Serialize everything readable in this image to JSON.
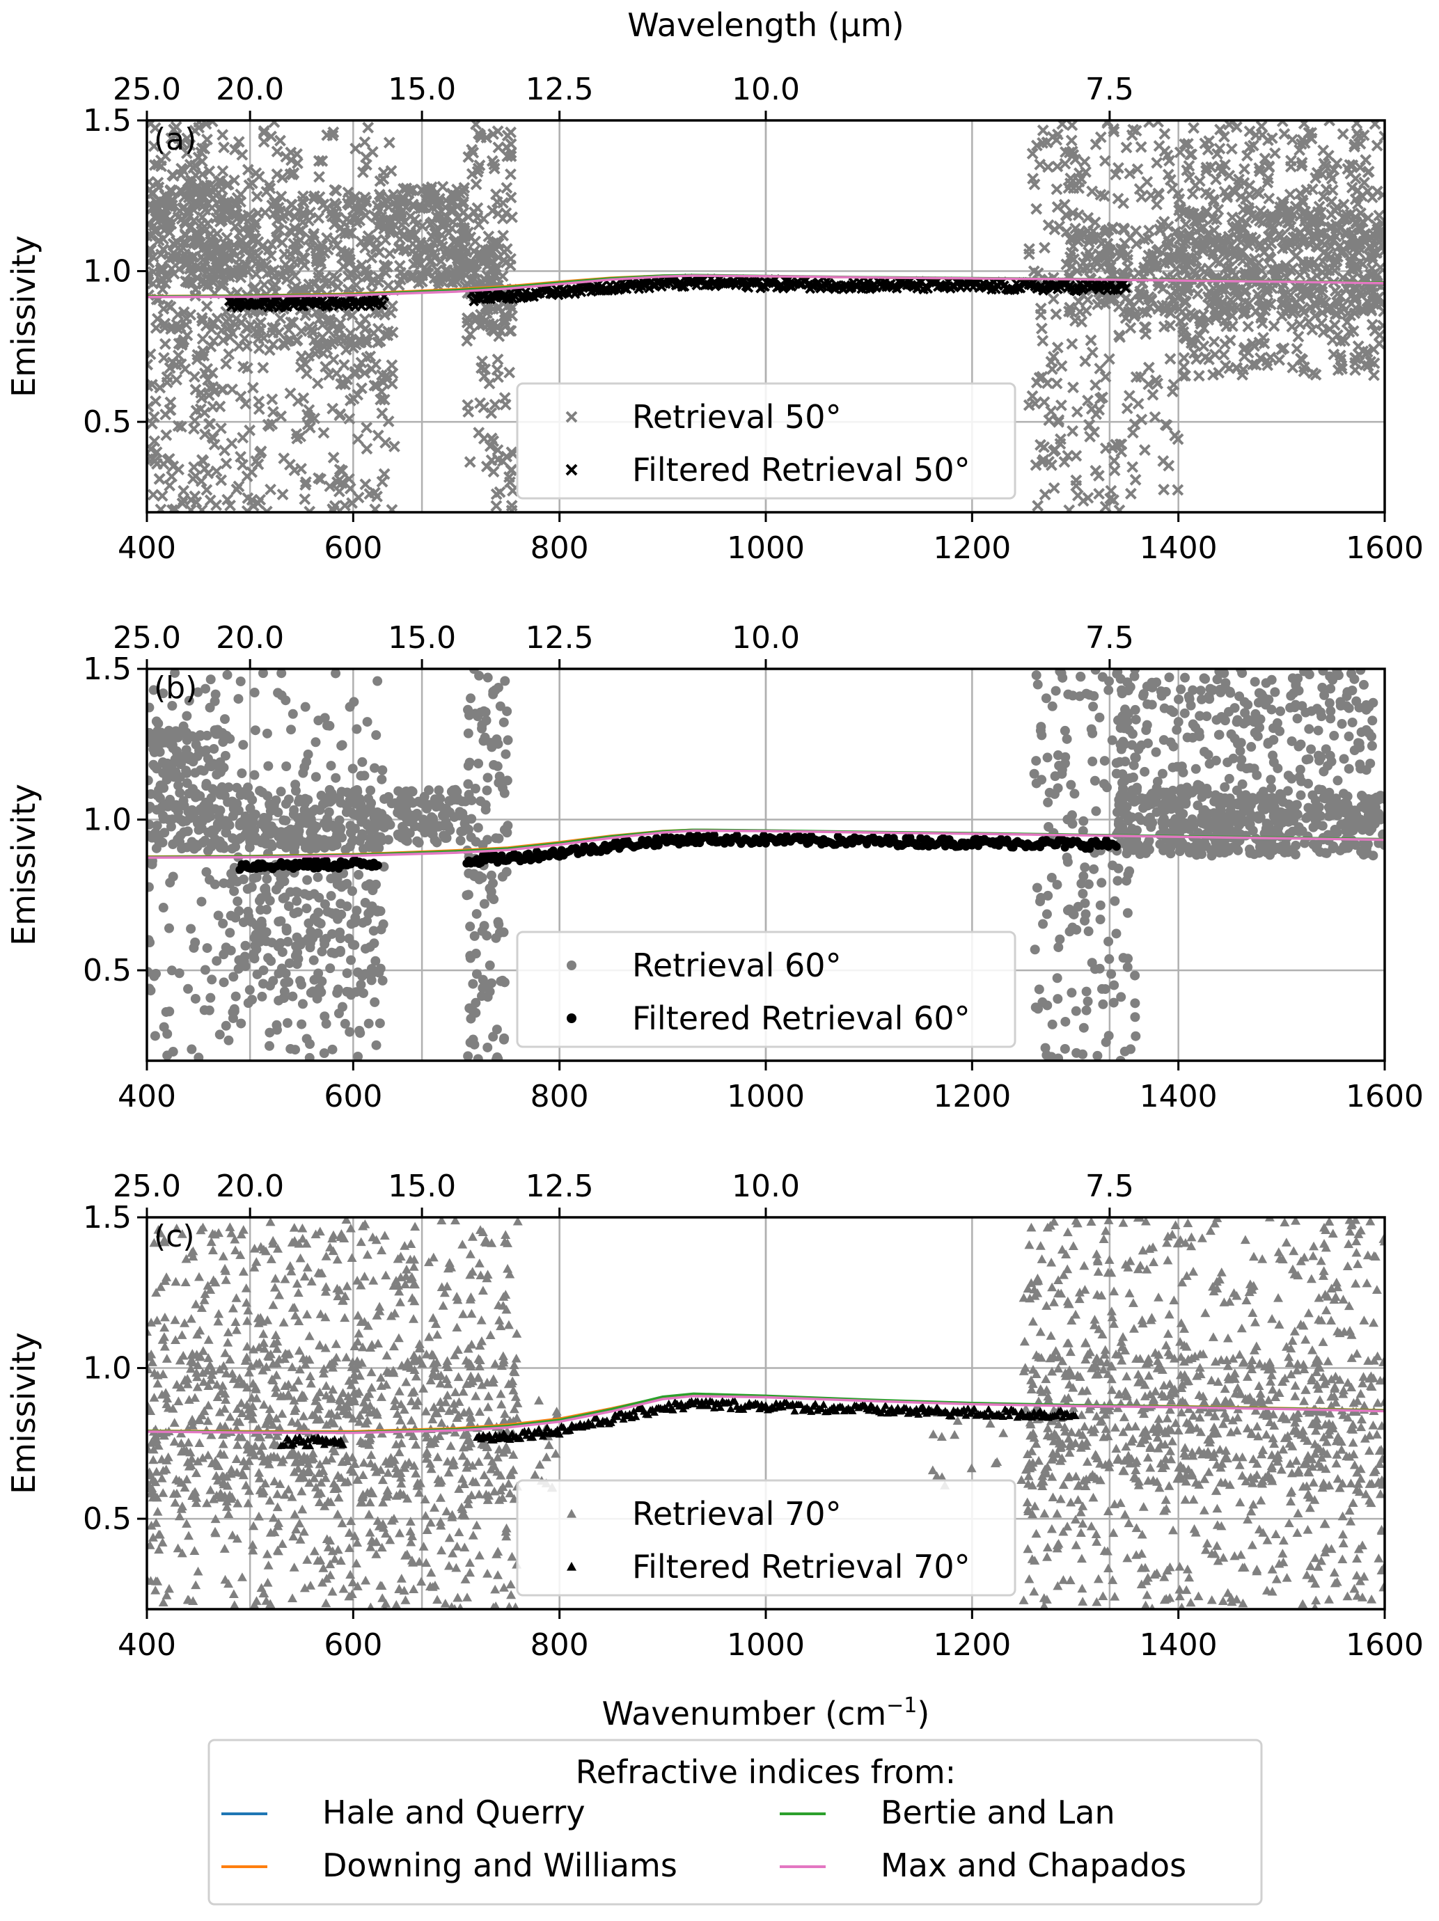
{
  "chart_data": {
    "type": "scatter",
    "top_axis_label": "Wavelength (μm)",
    "top_axis_ticks": [
      "25.0",
      "20.0",
      "15.0",
      "12.5",
      "10.0",
      "7.5"
    ],
    "top_axis_tick_wavelengths": [
      25.0,
      20.0,
      15.0,
      12.5,
      10.0,
      7.5
    ],
    "xlabel": "Wavenumber (cm⁻¹)",
    "xlabel_base": "Wavenumber (cm",
    "xlabel_sup": "−1",
    "xlabel_close": ")",
    "ylabel": "Emissivity",
    "xlim": [
      400,
      1600
    ],
    "ylim": [
      0.2,
      1.5
    ],
    "x_ticks": [
      "400",
      "600",
      "800",
      "1000",
      "1200",
      "1400",
      "1600"
    ],
    "y_ticks": [
      "0.5",
      "1.0",
      "1.5"
    ],
    "grid": true,
    "colors": {
      "retrieval": "#808080",
      "filtered": "#000000",
      "Hale and Querry": "#1f77b4",
      "Downing and Williams": "#ff7f0e",
      "Bertie and Lan": "#2ca02c",
      "Max and Chapados": "#e377c2"
    },
    "model_legend": {
      "title": "Refractive indices from:",
      "entries": [
        "Hale and Querry",
        "Downing and Williams",
        "Bertie and Lan",
        "Max and Chapados"
      ],
      "placement": "bottom-center"
    },
    "curve_x": [
      400,
      500,
      600,
      700,
      750,
      800,
      850,
      900,
      930,
      1000,
      1100,
      1200,
      1300,
      1400,
      1500,
      1600
    ],
    "panels": [
      {
        "label": "(a)",
        "marker": "x",
        "legend": [
          "Retrieval 50°",
          "Filtered Retrieval 50°"
        ],
        "legend_placement": "lower-center",
        "curves": {
          "Hale and Querry": [
            0.915,
            0.917,
            0.922,
            0.935,
            0.945,
            0.96,
            0.975,
            0.984,
            0.986,
            0.983,
            0.979,
            0.976,
            0.973,
            0.97,
            0.966,
            0.962
          ],
          "Downing and Williams": [
            0.917,
            0.919,
            0.925,
            0.94,
            0.95,
            0.965,
            0.978,
            0.985,
            0.986,
            0.983,
            0.979,
            0.976,
            0.973,
            0.97,
            0.966,
            0.962
          ],
          "Bertie and Lan": [
            0.916,
            0.918,
            0.923,
            0.937,
            0.947,
            0.962,
            0.976,
            0.985,
            0.987,
            0.984,
            0.98,
            0.977,
            0.974,
            0.97,
            0.966,
            0.962
          ],
          "Max and Chapados": [
            0.914,
            0.915,
            0.92,
            0.932,
            0.942,
            0.957,
            0.972,
            0.982,
            0.985,
            0.983,
            0.979,
            0.976,
            0.973,
            0.969,
            0.965,
            0.96
          ]
        },
        "retrieval_clusters": [
          {
            "x": [
              400,
              480
            ],
            "y": [
              0.2,
              1.5
            ],
            "n": 260
          },
          {
            "x": [
              400,
              480
            ],
            "y": [
              0.95,
              1.3
            ],
            "n": 200
          },
          {
            "x": [
              480,
              640
            ],
            "y": [
              0.2,
              1.5
            ],
            "n": 320
          },
          {
            "x": [
              480,
              640
            ],
            "y": [
              0.75,
              1.25
            ],
            "n": 300
          },
          {
            "x": [
              640,
              710
            ],
            "y": [
              0.95,
              1.28
            ],
            "n": 200
          },
          {
            "x": [
              710,
              755
            ],
            "y": [
              0.2,
              1.5
            ],
            "n": 120
          },
          {
            "x": [
              710,
              755
            ],
            "y": [
              0.8,
              1.1
            ],
            "n": 90
          },
          {
            "x": [
              1255,
              1400
            ],
            "y": [
              0.2,
              1.5
            ],
            "n": 260
          },
          {
            "x": [
              1290,
              1400
            ],
            "y": [
              0.85,
              1.15
            ],
            "n": 160
          },
          {
            "x": [
              1400,
              1600
            ],
            "y": [
              0.65,
              1.5
            ],
            "n": 450
          },
          {
            "x": [
              1400,
              1600
            ],
            "y": [
              0.85,
              1.2
            ],
            "n": 350
          }
        ],
        "filtered_ranges": [
          [
            480,
            630
          ],
          [
            715,
            1350
          ]
        ],
        "filtered_offset": -0.025
      },
      {
        "label": "(b)",
        "marker": "o",
        "legend": [
          "Retrieval 60°",
          "Filtered Retrieval 60°"
        ],
        "legend_placement": "lower-center",
        "curves": {
          "Hale and Querry": [
            0.875,
            0.877,
            0.882,
            0.893,
            0.902,
            0.92,
            0.942,
            0.96,
            0.965,
            0.963,
            0.958,
            0.954,
            0.949,
            0.944,
            0.939,
            0.935
          ],
          "Downing and Williams": [
            0.877,
            0.879,
            0.885,
            0.898,
            0.907,
            0.925,
            0.946,
            0.962,
            0.966,
            0.963,
            0.958,
            0.954,
            0.949,
            0.944,
            0.939,
            0.935
          ],
          "Bertie and Lan": [
            0.876,
            0.878,
            0.883,
            0.895,
            0.904,
            0.922,
            0.944,
            0.961,
            0.966,
            0.964,
            0.959,
            0.955,
            0.95,
            0.945,
            0.94,
            0.935
          ],
          "Max and Chapados": [
            0.874,
            0.875,
            0.88,
            0.89,
            0.899,
            0.917,
            0.939,
            0.957,
            0.963,
            0.962,
            0.957,
            0.953,
            0.948,
            0.943,
            0.938,
            0.933
          ]
        },
        "retrieval_clusters": [
          {
            "x": [
              400,
              480
            ],
            "y": [
              0.2,
              1.5
            ],
            "n": 90
          },
          {
            "x": [
              400,
              480
            ],
            "y": [
              0.9,
              1.3
            ],
            "n": 200
          },
          {
            "x": [
              480,
              630
            ],
            "y": [
              0.2,
              1.5
            ],
            "n": 200
          },
          {
            "x": [
              480,
              630
            ],
            "y": [
              0.9,
              1.1
            ],
            "n": 200
          },
          {
            "x": [
              480,
              630
            ],
            "y": [
              0.4,
              0.85
            ],
            "n": 150
          },
          {
            "x": [
              630,
              710
            ],
            "y": [
              0.92,
              1.1
            ],
            "n": 120
          },
          {
            "x": [
              710,
              750
            ],
            "y": [
              0.2,
              1.5
            ],
            "n": 130
          },
          {
            "x": [
              1260,
              1360
            ],
            "y": [
              0.2,
              1.5
            ],
            "n": 180
          },
          {
            "x": [
              1340,
              1590
            ],
            "y": [
              0.88,
              1.5
            ],
            "n": 420
          },
          {
            "x": [
              1340,
              1600
            ],
            "y": [
              0.88,
              1.1
            ],
            "n": 350
          }
        ],
        "filtered_ranges": [
          [
            490,
            625
          ],
          [
            710,
            1340
          ]
        ],
        "filtered_offset": -0.03
      },
      {
        "label": "(c)",
        "marker": "^",
        "legend": [
          "Retrieval 70°",
          "Filtered Retrieval 70°"
        ],
        "legend_placement": "lower-center",
        "curves": {
          "Hale and Querry": [
            0.79,
            0.787,
            0.786,
            0.795,
            0.805,
            0.825,
            0.86,
            0.9,
            0.91,
            0.905,
            0.893,
            0.882,
            0.876,
            0.872,
            0.866,
            0.86
          ],
          "Downing and Williams": [
            0.792,
            0.79,
            0.79,
            0.8,
            0.812,
            0.832,
            0.866,
            0.903,
            0.912,
            0.906,
            0.894,
            0.883,
            0.877,
            0.873,
            0.867,
            0.86
          ],
          "Bertie and Lan": [
            0.791,
            0.788,
            0.787,
            0.797,
            0.808,
            0.828,
            0.863,
            0.905,
            0.915,
            0.908,
            0.895,
            0.884,
            0.877,
            0.872,
            0.866,
            0.859
          ],
          "Max and Chapados": [
            0.789,
            0.786,
            0.785,
            0.793,
            0.803,
            0.822,
            0.856,
            0.897,
            0.907,
            0.903,
            0.891,
            0.88,
            0.874,
            0.87,
            0.864,
            0.857
          ]
        },
        "retrieval_clusters": [
          {
            "x": [
              400,
              760
            ],
            "y": [
              0.2,
              1.5
            ],
            "n": 750
          },
          {
            "x": [
              400,
              760
            ],
            "y": [
              0.55,
              1.05
            ],
            "n": 500
          },
          {
            "x": [
              775,
              800
            ],
            "y": [
              0.6,
              0.9
            ],
            "n": 15
          },
          {
            "x": [
              1160,
              1300
            ],
            "y": [
              0.6,
              0.9
            ],
            "n": 30
          },
          {
            "x": [
              1250,
              1600
            ],
            "y": [
              0.2,
              1.5
            ],
            "n": 650
          },
          {
            "x": [
              1250,
              1600
            ],
            "y": [
              0.6,
              1.05
            ],
            "n": 450
          }
        ],
        "filtered_ranges": [
          [
            530,
            590
          ],
          [
            720,
            1300
          ]
        ],
        "filtered_offset": -0.03
      }
    ]
  }
}
